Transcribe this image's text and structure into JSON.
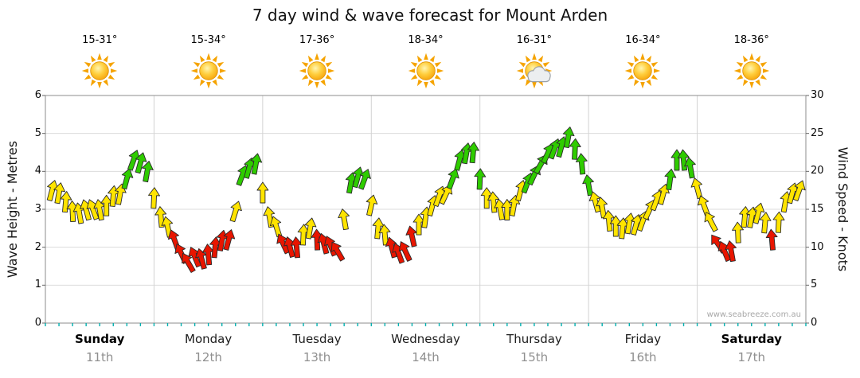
{
  "watermark": "www.seabreeze.com.au",
  "days": [
    {
      "name": "Sunday",
      "date": "11th",
      "temp": "15-31°",
      "icon": "sunny",
      "bold": true
    },
    {
      "name": "Monday",
      "date": "12th",
      "temp": "15-34°",
      "icon": "sunny",
      "bold": false
    },
    {
      "name": "Tuesday",
      "date": "13th",
      "temp": "17-36°",
      "icon": "sunny",
      "bold": false
    },
    {
      "name": "Wednesday",
      "date": "14th",
      "temp": "18-34°",
      "icon": "sunny",
      "bold": false
    },
    {
      "name": "Thursday",
      "date": "15th",
      "temp": "16-31°",
      "icon": "partly-cloudy",
      "bold": false
    },
    {
      "name": "Friday",
      "date": "16th",
      "temp": "16-34°",
      "icon": "sunny",
      "bold": false
    },
    {
      "name": "Saturday",
      "date": "17th",
      "temp": "18-36°",
      "icon": "sunny",
      "bold": true
    }
  ],
  "chart_data": {
    "type": "scatter",
    "marker": "wind-arrow",
    "title": "7 day wind & wave forecast for Mount Arden",
    "y_left": {
      "label": "Wave Height - Metres",
      "range": [
        0,
        6
      ],
      "ticks": [
        0,
        1,
        2,
        3,
        4,
        5,
        6
      ]
    },
    "y_right": {
      "label": "Wind Speed - Knots",
      "range": [
        0,
        30
      ],
      "ticks": [
        0,
        5,
        10,
        15,
        20,
        25,
        30
      ]
    },
    "x_axis": {
      "days": [
        "Sunday",
        "Monday",
        "Tuesday",
        "Wednesday",
        "Thursday",
        "Friday",
        "Saturday"
      ],
      "total_hours": 168,
      "first_point_hour": 1.5,
      "step_hours": 3
    },
    "grid": true,
    "legend": "none",
    "colors": {
      "red": "#e81500",
      "yellow": "#ffe400",
      "green": "#2fcc00",
      "outline": "#2b2b2b",
      "time_tick": "#00b0b0"
    },
    "color_thresholds": {
      "red_max_knots": 11.5,
      "green_min_knots": 18
    },
    "series": [
      {
        "name": "Wind Speed (knots)",
        "values": [
          17.5,
          16,
          14.5,
          15,
          15.5,
          17,
          21.5,
          20,
          14,
          11,
          8,
          8.5,
          10,
          11,
          19.5,
          21,
          14,
          10.5,
          10,
          12.5,
          10.5,
          9.5,
          18.5,
          19,
          12.5,
          10,
          9.5,
          13,
          15.5,
          17,
          21.5,
          22.5,
          16.5,
          15,
          15.5,
          18.5,
          21,
          23,
          24.5,
          21,
          16,
          13.5,
          12.5,
          13,
          15,
          17,
          21.5,
          20.5,
          15.5,
          10.5,
          9.5,
          14,
          14.5,
          11,
          16,
          17.5
        ],
        "directions_deg": [
          15,
          5,
          -10,
          -20,
          0,
          10,
          20,
          10,
          -5,
          -20,
          -30,
          -15,
          5,
          15,
          20,
          10,
          -10,
          -25,
          -5,
          10,
          -15,
          -30,
          10,
          20,
          5,
          -15,
          -25,
          0,
          15,
          25,
          15,
          5,
          0,
          -10,
          10,
          20,
          30,
          20,
          10,
          -5,
          -15,
          -5,
          5,
          15,
          25,
          15,
          0,
          -10,
          -20,
          -35,
          -10,
          5,
          15,
          -5,
          10,
          20
        ]
      }
    ]
  }
}
